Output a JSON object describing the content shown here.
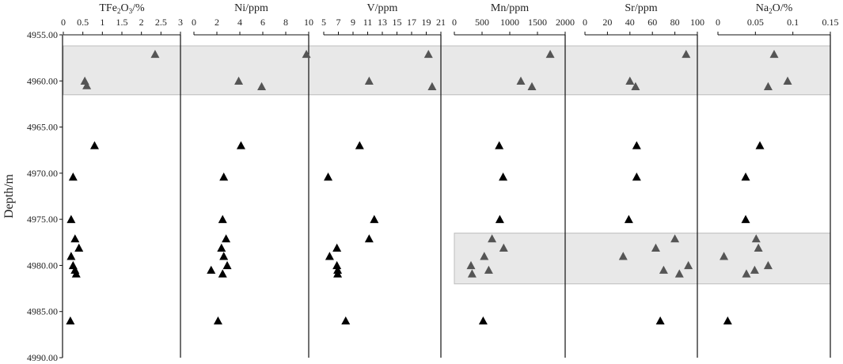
{
  "chart_data": {
    "type": "scatter",
    "ylabel": "Depth/m",
    "y_axis": {
      "range": [
        4955,
        4990
      ],
      "inverted": true,
      "ticks": [
        4955,
        4960,
        4965,
        4970,
        4975,
        4980,
        4985,
        4990
      ],
      "tick_labels": [
        "4955.00",
        "4960.00",
        "4965.00",
        "4970.00",
        "4975.00",
        "4980.00",
        "4985.00",
        "4990.00"
      ]
    },
    "grid": false,
    "highlight_bands": [
      {
        "depth_range": [
          4956.2,
          4961.5
        ],
        "panels": "all",
        "color": "#e8e8e8"
      },
      {
        "depth_range": [
          4976.5,
          4982.0
        ],
        "panels": [
          "Mn/ppm",
          "Sr/ppm",
          "Na2O/%"
        ],
        "color": "#e8e8e8"
      }
    ],
    "marker_colors": {
      "highlighted": "#555555",
      "normal": "#000000"
    },
    "panels": [
      {
        "title_main": "TFe",
        "title_sub1": "2",
        "title_mid": "O",
        "title_sub2": "3",
        "title_tail": "/%",
        "xlim": [
          0,
          3
        ],
        "ticks": [
          0,
          0.5,
          1,
          1.5,
          2,
          2.5,
          3
        ],
        "tick_labels": [
          "0",
          "0.5",
          "1",
          "1.5",
          "2",
          "2.5",
          "3"
        ],
        "points": [
          {
            "x": 2.35,
            "depth": 4957.1,
            "highlighted": true
          },
          {
            "x": 0.55,
            "depth": 4960.0,
            "highlighted": true
          },
          {
            "x": 0.6,
            "depth": 4960.5,
            "highlighted": true
          },
          {
            "x": 0.8,
            "depth": 4967.0,
            "highlighted": false
          },
          {
            "x": 0.25,
            "depth": 4970.4,
            "highlighted": false
          },
          {
            "x": 0.2,
            "depth": 4975.0,
            "highlighted": false
          },
          {
            "x": 0.3,
            "depth": 4977.1,
            "highlighted": false
          },
          {
            "x": 0.4,
            "depth": 4978.1,
            "highlighted": false
          },
          {
            "x": 0.2,
            "depth": 4979.0,
            "highlighted": false
          },
          {
            "x": 0.25,
            "depth": 4980.0,
            "highlighted": false
          },
          {
            "x": 0.3,
            "depth": 4980.5,
            "highlighted": false
          },
          {
            "x": 0.33,
            "depth": 4980.9,
            "highlighted": false
          },
          {
            "x": 0.18,
            "depth": 4986.0,
            "highlighted": false
          }
        ]
      },
      {
        "title_main": "Ni/ppm",
        "xlim": [
          0,
          10
        ],
        "ticks": [
          0,
          2,
          4,
          6,
          8,
          10
        ],
        "tick_labels": [
          "0",
          "2",
          "4",
          "6",
          "8",
          "10"
        ],
        "points": [
          {
            "x": 9.8,
            "depth": 4957.1,
            "highlighted": true
          },
          {
            "x": 3.9,
            "depth": 4960.0,
            "highlighted": true
          },
          {
            "x": 5.9,
            "depth": 4960.6,
            "highlighted": true
          },
          {
            "x": 4.1,
            "depth": 4967.0,
            "highlighted": false
          },
          {
            "x": 2.6,
            "depth": 4970.4,
            "highlighted": false
          },
          {
            "x": 2.5,
            "depth": 4975.0,
            "highlighted": false
          },
          {
            "x": 2.8,
            "depth": 4977.1,
            "highlighted": false
          },
          {
            "x": 2.4,
            "depth": 4978.1,
            "highlighted": false
          },
          {
            "x": 2.6,
            "depth": 4979.0,
            "highlighted": false
          },
          {
            "x": 2.9,
            "depth": 4980.0,
            "highlighted": false
          },
          {
            "x": 1.5,
            "depth": 4980.5,
            "highlighted": false
          },
          {
            "x": 2.5,
            "depth": 4980.9,
            "highlighted": false
          },
          {
            "x": 2.1,
            "depth": 4986.0,
            "highlighted": false
          }
        ]
      },
      {
        "title_main": "V/ppm",
        "xlim": [
          5,
          21
        ],
        "ticks": [
          5,
          7,
          9,
          11,
          13,
          15,
          17,
          19,
          21
        ],
        "tick_labels": [
          "5",
          "7",
          "9",
          "11",
          "13",
          "15",
          "17",
          "19",
          "21"
        ],
        "points": [
          {
            "x": 19.3,
            "depth": 4957.1,
            "highlighted": true
          },
          {
            "x": 11.2,
            "depth": 4960.0,
            "highlighted": true
          },
          {
            "x": 19.8,
            "depth": 4960.6,
            "highlighted": true
          },
          {
            "x": 9.9,
            "depth": 4967.0,
            "highlighted": false
          },
          {
            "x": 5.6,
            "depth": 4970.4,
            "highlighted": false
          },
          {
            "x": 11.9,
            "depth": 4975.0,
            "highlighted": false
          },
          {
            "x": 11.2,
            "depth": 4977.1,
            "highlighted": false
          },
          {
            "x": 6.8,
            "depth": 4978.1,
            "highlighted": false
          },
          {
            "x": 5.8,
            "depth": 4979.0,
            "highlighted": false
          },
          {
            "x": 6.8,
            "depth": 4980.0,
            "highlighted": false
          },
          {
            "x": 6.9,
            "depth": 4980.5,
            "highlighted": false
          },
          {
            "x": 6.9,
            "depth": 4980.9,
            "highlighted": false
          },
          {
            "x": 8.0,
            "depth": 4986.0,
            "highlighted": false
          }
        ]
      },
      {
        "title_main": "Mn/ppm",
        "xlim": [
          0,
          2000
        ],
        "ticks": [
          0,
          500,
          1000,
          1500,
          2000
        ],
        "tick_labels": [
          "0",
          "500",
          "1000",
          "1500",
          "2000"
        ],
        "points": [
          {
            "x": 1730,
            "depth": 4957.1,
            "highlighted": true
          },
          {
            "x": 1200,
            "depth": 4960.0,
            "highlighted": true
          },
          {
            "x": 1400,
            "depth": 4960.6,
            "highlighted": true
          },
          {
            "x": 810,
            "depth": 4967.0,
            "highlighted": false
          },
          {
            "x": 880,
            "depth": 4970.4,
            "highlighted": false
          },
          {
            "x": 820,
            "depth": 4975.0,
            "highlighted": false
          },
          {
            "x": 680,
            "depth": 4977.1,
            "highlighted": true
          },
          {
            "x": 890,
            "depth": 4978.1,
            "highlighted": true
          },
          {
            "x": 540,
            "depth": 4979.0,
            "highlighted": true
          },
          {
            "x": 300,
            "depth": 4980.0,
            "highlighted": true
          },
          {
            "x": 620,
            "depth": 4980.5,
            "highlighted": true
          },
          {
            "x": 320,
            "depth": 4980.9,
            "highlighted": true
          },
          {
            "x": 520,
            "depth": 4986.0,
            "highlighted": false
          }
        ]
      },
      {
        "title_main": "Sr/ppm",
        "xlim": [
          0,
          100
        ],
        "ticks": [
          0,
          20,
          40,
          60,
          80,
          100
        ],
        "tick_labels": [
          "0",
          "20",
          "40",
          "60",
          "80",
          "100"
        ],
        "points": [
          {
            "x": 90,
            "depth": 4957.1,
            "highlighted": true
          },
          {
            "x": 40,
            "depth": 4960.0,
            "highlighted": true
          },
          {
            "x": 45,
            "depth": 4960.6,
            "highlighted": true
          },
          {
            "x": 46,
            "depth": 4967.0,
            "highlighted": false
          },
          {
            "x": 46,
            "depth": 4970.4,
            "highlighted": false
          },
          {
            "x": 39,
            "depth": 4975.0,
            "highlighted": false
          },
          {
            "x": 80,
            "depth": 4977.1,
            "highlighted": true
          },
          {
            "x": 63,
            "depth": 4978.1,
            "highlighted": true
          },
          {
            "x": 34,
            "depth": 4979.0,
            "highlighted": true
          },
          {
            "x": 92,
            "depth": 4980.0,
            "highlighted": true
          },
          {
            "x": 70,
            "depth": 4980.5,
            "highlighted": true
          },
          {
            "x": 84,
            "depth": 4980.9,
            "highlighted": true
          },
          {
            "x": 67,
            "depth": 4986.0,
            "highlighted": false
          }
        ]
      },
      {
        "title_main": "Na",
        "title_sub1": "2",
        "title_mid": "O/%",
        "title_sub2": "",
        "title_tail": "",
        "xlim": [
          0,
          0.15
        ],
        "ticks": [
          0,
          0.05,
          0.1,
          0.15
        ],
        "tick_labels": [
          "0",
          "0.05",
          "0.1",
          "0.15"
        ],
        "points": [
          {
            "x": 0.075,
            "depth": 4957.1,
            "highlighted": true
          },
          {
            "x": 0.093,
            "depth": 4960.0,
            "highlighted": true
          },
          {
            "x": 0.067,
            "depth": 4960.6,
            "highlighted": true
          },
          {
            "x": 0.056,
            "depth": 4967.0,
            "highlighted": false
          },
          {
            "x": 0.037,
            "depth": 4970.4,
            "highlighted": false
          },
          {
            "x": 0.037,
            "depth": 4975.0,
            "highlighted": false
          },
          {
            "x": 0.051,
            "depth": 4977.1,
            "highlighted": true
          },
          {
            "x": 0.054,
            "depth": 4978.1,
            "highlighted": true
          },
          {
            "x": 0.008,
            "depth": 4979.0,
            "highlighted": true
          },
          {
            "x": 0.067,
            "depth": 4980.0,
            "highlighted": true
          },
          {
            "x": 0.049,
            "depth": 4980.5,
            "highlighted": true
          },
          {
            "x": 0.038,
            "depth": 4980.9,
            "highlighted": true
          },
          {
            "x": 0.013,
            "depth": 4986.0,
            "highlighted": false
          }
        ]
      }
    ]
  }
}
